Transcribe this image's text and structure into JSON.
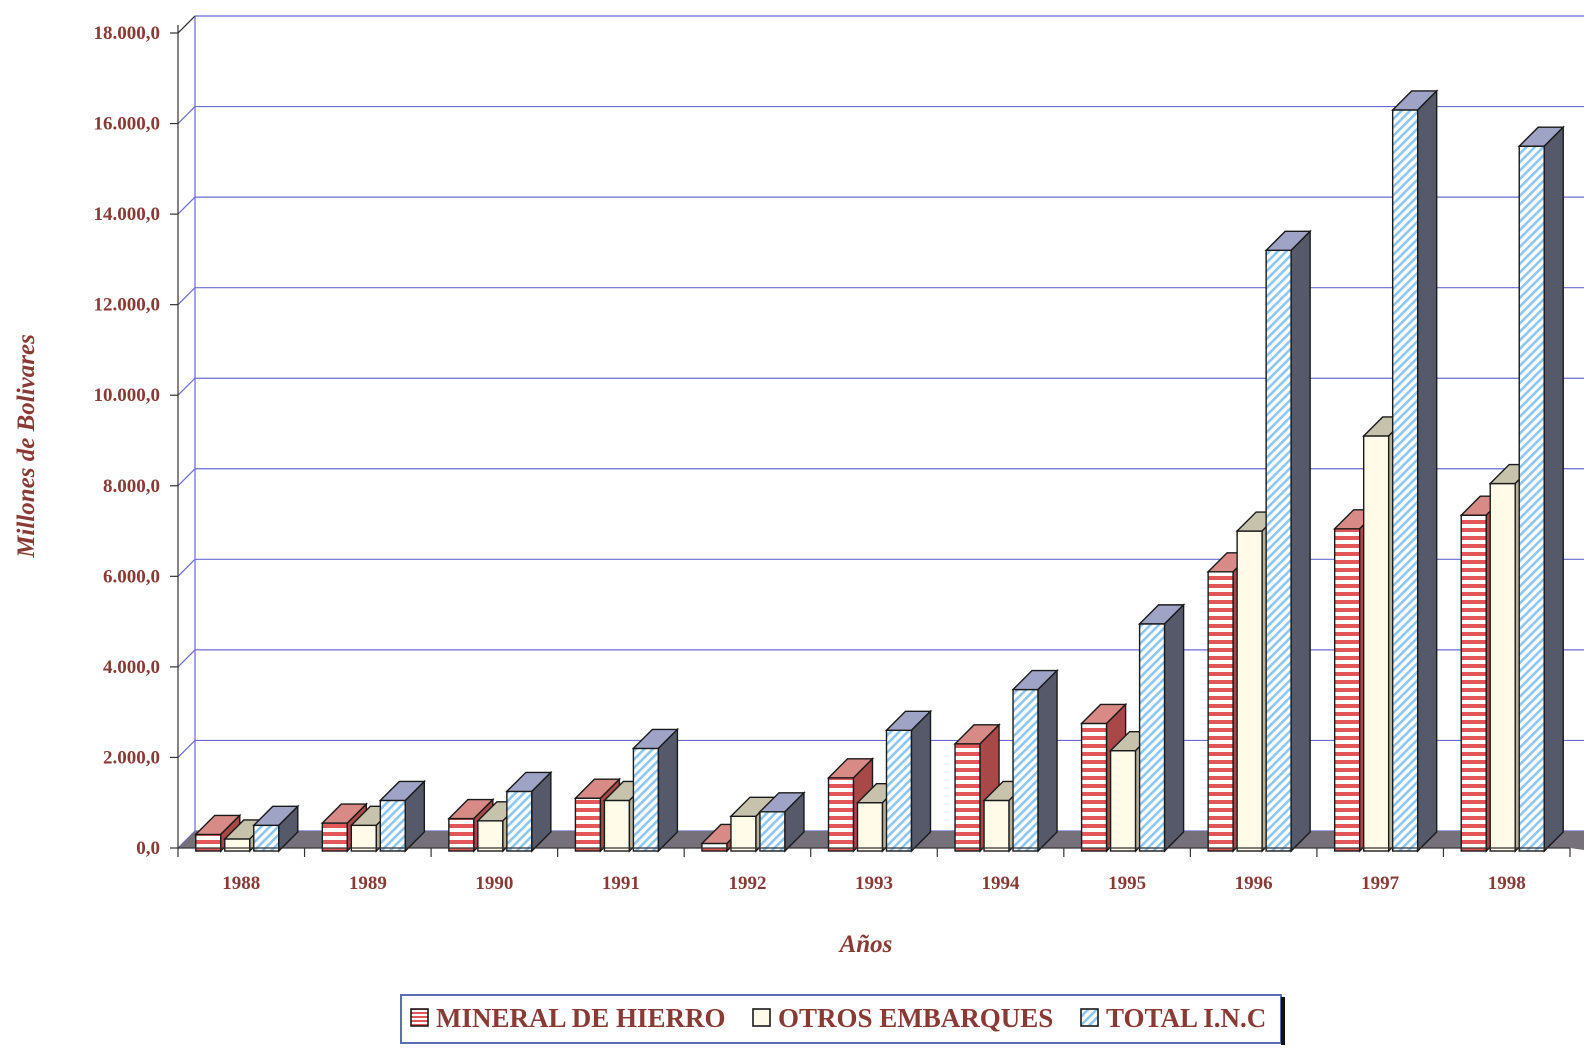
{
  "chart_data": {
    "type": "bar",
    "categories": [
      "1988",
      "1989",
      "1990",
      "1991",
      "1992",
      "1993",
      "1994",
      "1995",
      "1996",
      "1997",
      "1998"
    ],
    "series": [
      {
        "name": "MINERAL DE HIERRO",
        "values": [
          300,
          550,
          650,
          1100,
          100,
          1550,
          2300,
          2750,
          6100,
          7050,
          7350
        ]
      },
      {
        "name": "OTROS EMBARQUES",
        "values": [
          200,
          500,
          600,
          1050,
          700,
          1000,
          1050,
          2150,
          7000,
          9100,
          8050
        ]
      },
      {
        "name": "TOTAL I.N.C",
        "values": [
          500,
          1050,
          1250,
          2200,
          800,
          2600,
          3500,
          4950,
          13200,
          16300,
          15500
        ]
      }
    ],
    "yticks": [
      "0,0",
      "2.000,0",
      "4.000,0",
      "6.000,0",
      "8.000,0",
      "10.000,0",
      "12.000,0",
      "14.000,0",
      "16.000,0",
      "18.000,0"
    ],
    "ylim": [
      0,
      18000
    ],
    "xlabel": "Años",
    "ylabel": "Millones de Bolivares",
    "grid": true,
    "legend_position": "bottom-center",
    "colors": {
      "label_text": "#8a3a35",
      "gridline": "#6b6bd6",
      "floor": "#76707a",
      "series_fill": [
        "#e2585a",
        "#fffbe8",
        "#8ec6f2"
      ],
      "series_side": [
        "#a84848",
        "#b8b29a",
        "#55596a"
      ],
      "series_top": [
        "#d88a86",
        "#c7c2ab",
        "#9fa3c6"
      ]
    }
  }
}
